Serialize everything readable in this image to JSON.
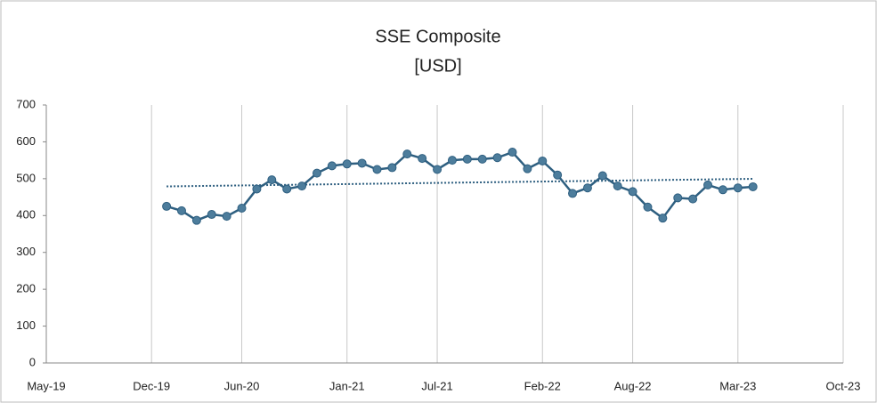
{
  "chart_data": {
    "type": "line",
    "title": "SSE Composite",
    "subtitle": "[USD]",
    "x": [
      "2020-01",
      "2020-02",
      "2020-03",
      "2020-04",
      "2020-05",
      "2020-06",
      "2020-07",
      "2020-08",
      "2020-09",
      "2020-10",
      "2020-11",
      "2020-12",
      "2021-01",
      "2021-02",
      "2021-03",
      "2021-04",
      "2021-05",
      "2021-06",
      "2021-07",
      "2021-08",
      "2021-09",
      "2021-10",
      "2021-11",
      "2021-12",
      "2022-01",
      "2022-02",
      "2022-03",
      "2022-04",
      "2022-05",
      "2022-06",
      "2022-07",
      "2022-08",
      "2022-09",
      "2022-10",
      "2022-11",
      "2022-12",
      "2023-01",
      "2023-02",
      "2023-03",
      "2023-04"
    ],
    "series": [
      {
        "name": "SSE Composite",
        "color": "#2e5f80",
        "marker_color": "#4d7d9c",
        "values": [
          425,
          413,
          387,
          403,
          398,
          420,
          472,
          497,
          472,
          480,
          515,
          535,
          540,
          542,
          525,
          530,
          567,
          555,
          525,
          550,
          553,
          553,
          557,
          572,
          527,
          548,
          510,
          460,
          475,
          508,
          480,
          465,
          423,
          393,
          448,
          445,
          483,
          470,
          475,
          478
        ]
      }
    ],
    "trendline": true,
    "trend_color": "#2e5f80",
    "xlim": [
      "2019-05",
      "2023-10"
    ],
    "xticks": [
      {
        "value": "2019-05",
        "label": "May-19"
      },
      {
        "value": "2019-12",
        "label": "Dec-19"
      },
      {
        "value": "2020-06",
        "label": "Jun-20"
      },
      {
        "value": "2021-01",
        "label": "Jan-21"
      },
      {
        "value": "2021-07",
        "label": "Jul-21"
      },
      {
        "value": "2022-02",
        "label": "Feb-22"
      },
      {
        "value": "2022-08",
        "label": "Aug-22"
      },
      {
        "value": "2023-03",
        "label": "Mar-23"
      },
      {
        "value": "2023-10",
        "label": "Oct-23"
      }
    ],
    "ylim": [
      0,
      700
    ],
    "yticks": [
      0,
      100,
      200,
      300,
      400,
      500,
      600,
      700
    ],
    "grid": "x"
  }
}
